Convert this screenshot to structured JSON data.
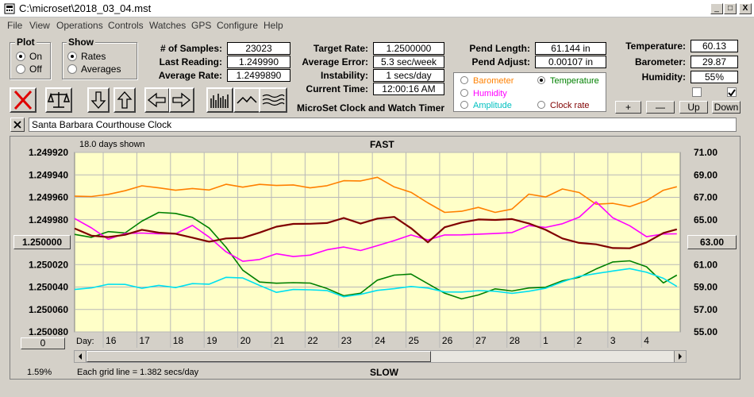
{
  "window": {
    "title": "C:\\microset\\2018_03_04.mst",
    "buttons": [
      "_",
      "□",
      "X"
    ]
  },
  "menu": [
    "File",
    "View",
    "Operations",
    "Controls",
    "Watches",
    "GPS",
    "Configure",
    "Help"
  ],
  "plot_group": {
    "title": "Plot",
    "options": [
      {
        "label": "On",
        "selected": true
      },
      {
        "label": "Off",
        "selected": false
      }
    ]
  },
  "show_group": {
    "title": "Show",
    "options": [
      {
        "label": "Rates",
        "selected": true
      },
      {
        "label": "Averages",
        "selected": false
      }
    ]
  },
  "stats": {
    "samples_label": "# of Samples:",
    "samples_value": "23023",
    "last_reading_label": "Last Reading:",
    "last_reading_value": "1.249990",
    "average_rate_label": "Average Rate:",
    "average_rate_value": "1.2499890"
  },
  "timing": {
    "target_rate_label": "Target Rate:",
    "target_rate_value": "1.2500000",
    "average_error_label": "Average Error:",
    "average_error_value": "5.3 sec/week",
    "instability_label": "Instability:",
    "instability_value": "1 secs/day",
    "current_time_label": "Current Time:",
    "current_time_value": "12:00:16 AM"
  },
  "subtitle": "MicroSet Clock and Watch Timer",
  "pendulum": {
    "pend_length_label": "Pend Length:",
    "pend_length_value": "61.144 in",
    "pend_adjust_label": "Pend Adjust:",
    "pend_adjust_value": "0.00107 in"
  },
  "environment": {
    "temperature_label": "Temperature:",
    "temperature_value": "60.13",
    "barometer_label": "Barometer:",
    "barometer_value": "29.87",
    "humidity_label": "Humidity:",
    "humidity_value": "55%",
    "checkbox_left": false,
    "checkbox_right": true
  },
  "overlay_options": [
    {
      "label": "Barometer",
      "color": "#ff8000",
      "selected": false
    },
    {
      "label": "Temperature",
      "color": "#008000",
      "selected": true
    },
    {
      "label": "Humidity",
      "color": "#ff00ff",
      "selected": false
    },
    {
      "label": "Clock rate",
      "color": "#800000",
      "selected": false
    },
    {
      "label": "Amplitude",
      "color": "#00c0c0",
      "selected": false
    }
  ],
  "scale_buttons": [
    "+",
    "—",
    "Up",
    "Down"
  ],
  "toolbar_icons": [
    "stop-icon",
    "balance-icon",
    "down-arrow-icon",
    "up-arrow-icon",
    "left-arrow-icon",
    "right-arrow-icon",
    "bar-chart-icon",
    "wave-icon",
    "multi-wave-icon"
  ],
  "clock_name": "Santa Barbara Courthouse Clock",
  "chart": {
    "top_label": "FAST",
    "bottom_label": "SLOW",
    "days_shown": "18.0 days shown",
    "grid_note": "Each grid line = 1.382 secs/day",
    "percent": "1.59%",
    "left_button": "1.250000",
    "right_button": "63.00",
    "zero_button": "0",
    "day_label": "Day:"
  },
  "chart_data": {
    "type": "line",
    "title": "",
    "top_label": "FAST",
    "bottom_label": "SLOW",
    "left_axis": {
      "ticks": [
        "1.249920",
        "1.249940",
        "1.249960",
        "1.249980",
        "1.250000",
        "1.250020",
        "1.250040",
        "1.250060",
        "1.250080"
      ],
      "range": [
        1.24992,
        1.25008
      ],
      "inverted": true
    },
    "right_axis": {
      "ticks": [
        "71.00",
        "69.00",
        "67.00",
        "65.00",
        "63.00",
        "61.00",
        "59.00",
        "57.00",
        "55.00"
      ],
      "range": [
        55,
        71
      ]
    },
    "x_ticks": [
      "16",
      "17",
      "18",
      "19",
      "20",
      "21",
      "22",
      "23",
      "24",
      "25",
      "26",
      "27",
      "28",
      "1",
      "2",
      "3",
      "4"
    ],
    "x_range": [
      15.0,
      33.0
    ],
    "grid": true,
    "series": [
      {
        "color": "#ff8000",
        "axis": "right",
        "x": [
          15.0,
          15.5,
          16.0,
          16.5,
          17.0,
          17.5,
          18.0,
          18.5,
          19.0,
          19.5,
          20.0,
          20.5,
          21.0,
          21.5,
          22.0,
          22.5,
          23.0,
          23.5,
          24.0,
          24.5,
          25.0,
          25.5,
          26.0,
          26.5,
          27.0,
          27.5,
          28.0,
          28.5,
          29.0,
          29.5,
          30.0,
          30.5,
          31.0,
          31.5,
          32.0,
          32.5,
          32.9
        ],
        "y": [
          67.1,
          67.2,
          67.4,
          67.6,
          67.9,
          67.7,
          67.6,
          67.9,
          67.8,
          68.2,
          67.8,
          68.0,
          68.0,
          68.2,
          68.0,
          68.1,
          68.4,
          68.3,
          68.7,
          68.0,
          67.6,
          66.6,
          65.6,
          65.6,
          66.0,
          65.7,
          66.1,
          67.4,
          67.0,
          67.6,
          67.3,
          66.4,
          66.6,
          66.3,
          66.7,
          67.5,
          67.8
        ]
      },
      {
        "color": "#008000",
        "axis": "right",
        "x": [
          15.0,
          15.5,
          16.0,
          16.5,
          17.0,
          17.5,
          18.0,
          18.5,
          19.0,
          19.5,
          20.0,
          20.5,
          21.0,
          21.5,
          22.0,
          22.5,
          23.0,
          23.5,
          24.0,
          24.5,
          25.0,
          25.5,
          26.0,
          26.5,
          27.0,
          27.5,
          28.0,
          28.5,
          29.0,
          29.5,
          30.0,
          30.5,
          31.0,
          31.5,
          32.0,
          32.5,
          32.9
        ],
        "y": [
          63.7,
          63.3,
          63.8,
          63.8,
          65.0,
          65.8,
          65.6,
          65.1,
          64.1,
          62.5,
          60.6,
          59.6,
          59.4,
          59.3,
          59.2,
          58.8,
          58.3,
          58.6,
          59.7,
          60.0,
          60.0,
          59.2,
          58.5,
          58.1,
          58.4,
          58.8,
          58.5,
          58.8,
          59.0,
          59.7,
          60.0,
          60.6,
          61.1,
          61.2,
          60.8,
          59.5,
          60.2
        ]
      },
      {
        "color": "#ff00ff",
        "axis": "right",
        "x": [
          15.0,
          15.5,
          16.0,
          16.5,
          17.0,
          17.5,
          18.0,
          18.5,
          19.0,
          19.5,
          20.0,
          20.5,
          21.0,
          21.5,
          22.0,
          22.5,
          23.0,
          23.5,
          24.0,
          24.5,
          25.0,
          25.5,
          26.0,
          26.5,
          27.0,
          27.5,
          28.0,
          28.5,
          29.0,
          29.5,
          30.0,
          30.5,
          31.0,
          31.5,
          32.0,
          32.5,
          32.9
        ],
        "y": [
          65.1,
          64.4,
          63.4,
          63.8,
          63.7,
          63.6,
          63.7,
          64.6,
          63.6,
          62.2,
          61.2,
          61.3,
          61.9,
          61.8,
          62.0,
          62.4,
          62.5,
          62.1,
          62.6,
          63.2,
          63.8,
          63.3,
          63.6,
          63.5,
          63.6,
          63.8,
          64.0,
          64.6,
          64.3,
          64.5,
          65.1,
          66.6,
          65.3,
          64.6,
          63.5,
          63.6,
          63.6
        ]
      },
      {
        "color": "#00e0f0",
        "axis": "right",
        "x": [
          15.0,
          15.5,
          16.0,
          16.5,
          17.0,
          17.5,
          18.0,
          18.5,
          19.0,
          19.5,
          20.0,
          20.5,
          21.0,
          21.5,
          22.0,
          22.5,
          23.0,
          23.5,
          24.0,
          24.5,
          25.0,
          25.5,
          26.0,
          26.5,
          27.0,
          27.5,
          28.0,
          28.5,
          29.0,
          29.5,
          30.0,
          30.5,
          31.0,
          31.5,
          32.0,
          32.5,
          32.9
        ],
        "y": [
          58.8,
          58.8,
          59.1,
          59.2,
          59.0,
          59.3,
          59.0,
          59.2,
          59.1,
          59.8,
          59.9,
          59.3,
          58.6,
          58.7,
          58.6,
          58.6,
          58.2,
          58.5,
          58.8,
          58.8,
          58.9,
          58.8,
          58.6,
          58.7,
          58.8,
          58.6,
          58.3,
          58.5,
          58.9,
          59.6,
          60.1,
          60.2,
          60.3,
          60.5,
          60.3,
          59.9,
          59.2
        ]
      },
      {
        "color": "#800000",
        "axis": "left",
        "x": [
          15.0,
          15.5,
          16.0,
          16.5,
          17.0,
          17.5,
          18.0,
          18.5,
          19.0,
          19.5,
          20.0,
          20.5,
          21.0,
          21.5,
          22.0,
          22.5,
          23.0,
          23.5,
          24.0,
          24.5,
          25.0,
          25.5,
          26.0,
          26.5,
          27.0,
          27.5,
          28.0,
          28.5,
          29.0,
          29.5,
          30.0,
          30.5,
          31.0,
          31.5,
          32.0,
          32.5,
          32.9
        ],
        "y": [
          1.249988,
          1.249993,
          1.249994,
          1.249993,
          1.24999,
          1.249993,
          1.249993,
          1.249995,
          1.249998,
          1.249996,
          1.249997,
          1.249993,
          1.249987,
          1.249983,
          1.249982,
          1.249982,
          1.249979,
          1.249985,
          1.24998,
          1.249977,
          1.249986,
          1.249999,
          1.249987,
          1.249984,
          1.249981,
          1.24998,
          1.249978,
          1.249982,
          1.249989,
          1.249998,
          1.250002,
          1.250002,
          1.250004,
          1.250004,
          1.25,
          1.249993,
          1.24999
        ]
      }
    ]
  }
}
